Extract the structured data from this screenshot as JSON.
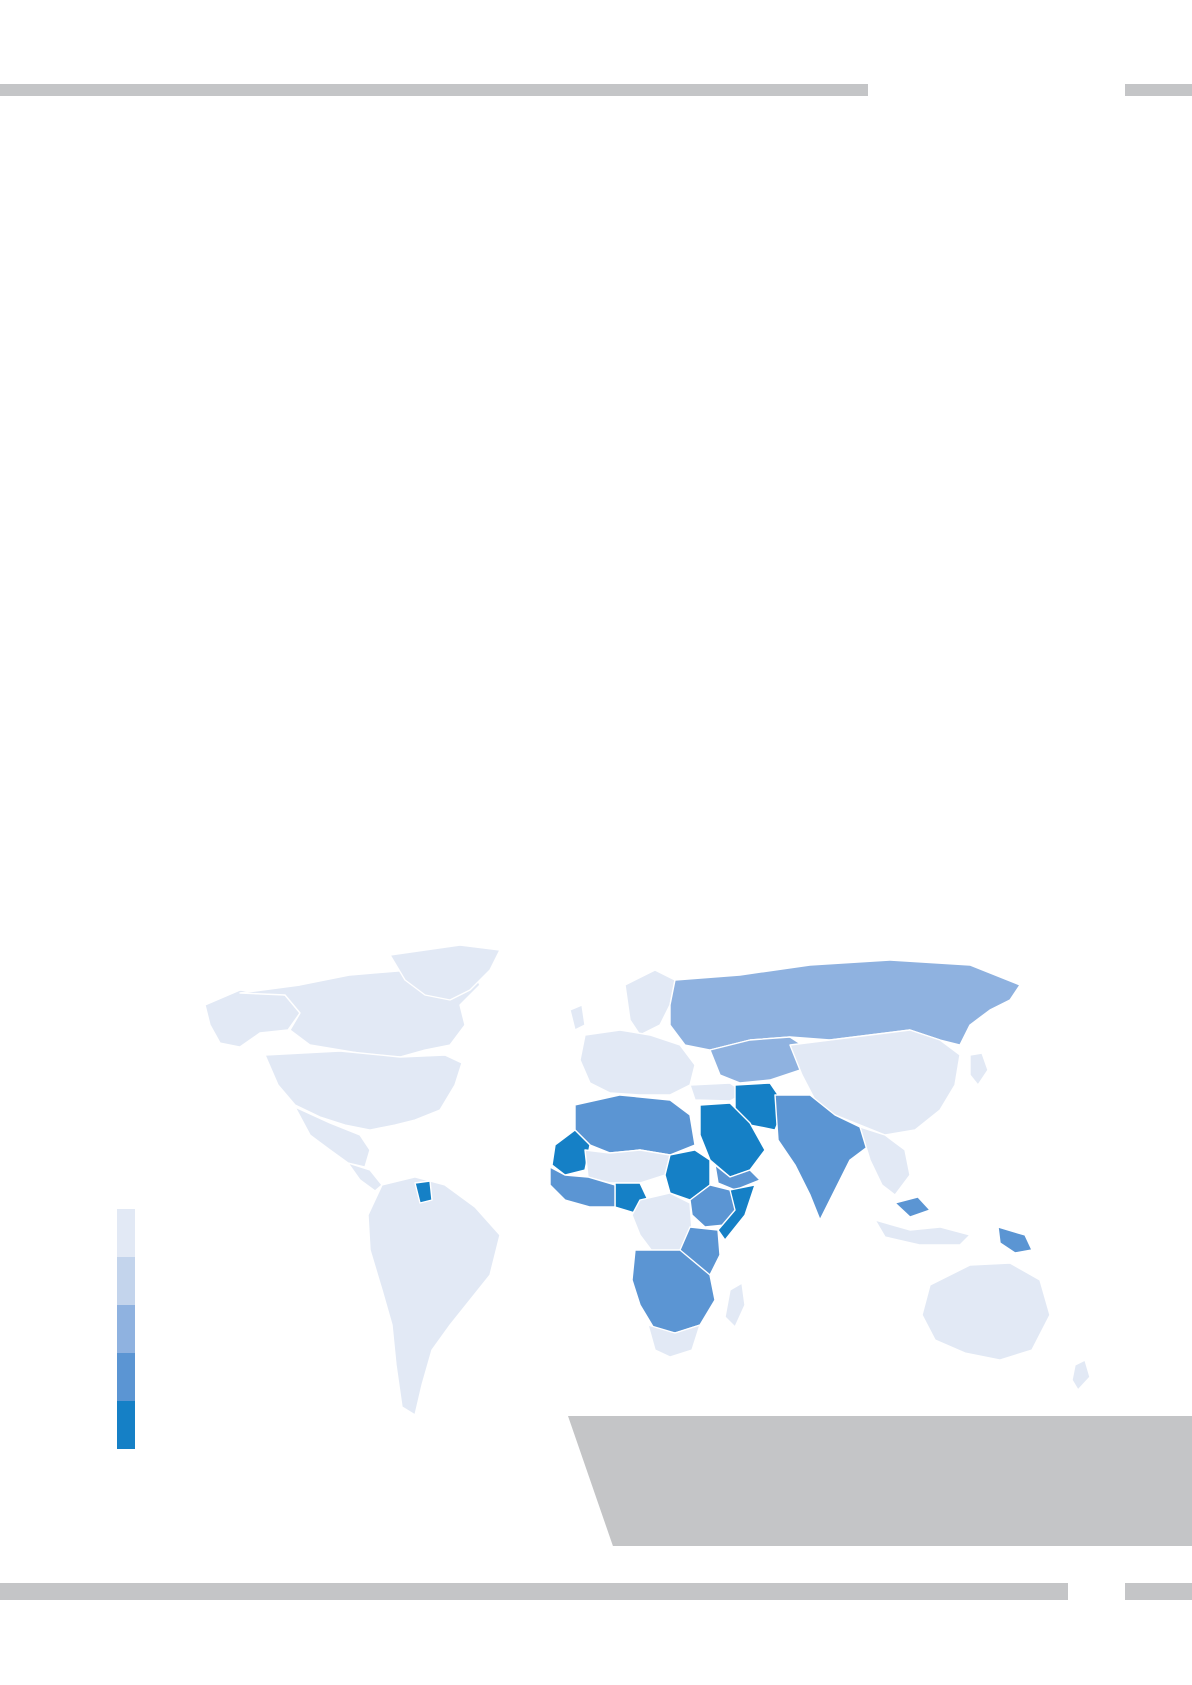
{
  "colors": {
    "rule": "#c4c5c7",
    "panel": "#c4c5c7",
    "borders": "#ffffff"
  },
  "legend": {
    "classes": [
      {
        "level": 1,
        "color": "#e2e9f5"
      },
      {
        "level": 2,
        "color": "#c3d4ec"
      },
      {
        "level": 3,
        "color": "#8fb2e0"
      },
      {
        "level": 4,
        "color": "#5b95d3"
      },
      {
        "level": 5,
        "color": "#1580c6"
      }
    ]
  },
  "map": {
    "type": "choropleth",
    "region_levels": {
      "north-america": 1,
      "greenland": 1,
      "central-america": 1,
      "south-america": 1,
      "guyana": 5,
      "europe": 1,
      "scandinavia": 1,
      "russia": 3,
      "kazakhstan-region": 3,
      "china-mongolia": 1,
      "japan": 1,
      "north-africa": 4,
      "mauritania": 5,
      "sahel": 1,
      "nigeria": 5,
      "sudan": 5,
      "horn-of-africa": 4,
      "somalia": 5,
      "central-africa": 1,
      "southern-africa": 4,
      "south-africa": 1,
      "madagascar": 1,
      "saudi-arabia": 5,
      "iran": 5,
      "yemen-gulf": 4,
      "south-asia": 4,
      "southeast-asia": 1,
      "malaysia": 4,
      "indonesia": 1,
      "papua-new-guinea": 4,
      "australia": 1,
      "new-zealand": 1
    }
  }
}
